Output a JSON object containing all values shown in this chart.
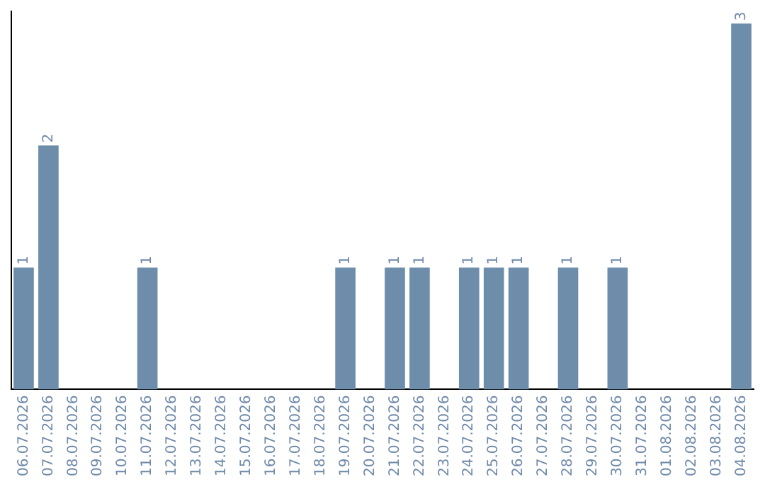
{
  "chart_data": {
    "type": "bar",
    "categories": [
      "06.07.2026",
      "07.07.2026",
      "08.07.2026",
      "09.07.2026",
      "10.07.2026",
      "11.07.2026",
      "12.07.2026",
      "13.07.2026",
      "14.07.2026",
      "15.07.2026",
      "16.07.2026",
      "17.07.2026",
      "18.07.2026",
      "19.07.2026",
      "20.07.2026",
      "21.07.2026",
      "22.07.2026",
      "23.07.2026",
      "24.07.2026",
      "25.07.2026",
      "26.07.2026",
      "27.07.2026",
      "28.07.2026",
      "29.07.2026",
      "30.07.2026",
      "31.07.2026",
      "01.08.2026",
      "02.08.2026",
      "03.08.2026",
      "04.08.2026"
    ],
    "values": [
      1,
      2,
      0,
      0,
      0,
      1,
      0,
      0,
      0,
      0,
      0,
      0,
      0,
      1,
      0,
      1,
      1,
      0,
      1,
      1,
      1,
      0,
      1,
      0,
      1,
      0,
      0,
      0,
      0,
      3
    ],
    "value_labels": [
      "1",
      "2",
      null,
      null,
      null,
      "1",
      null,
      null,
      null,
      null,
      null,
      null,
      null,
      "1",
      null,
      "1",
      "1",
      null,
      "1",
      "1",
      "1",
      null,
      "1",
      null,
      "1",
      null,
      null,
      null,
      null,
      "3"
    ],
    "color": "#6d8dab",
    "ylim": [
      0,
      3.1
    ],
    "tick_labels": "x",
    "grid": false,
    "legend": false
  }
}
